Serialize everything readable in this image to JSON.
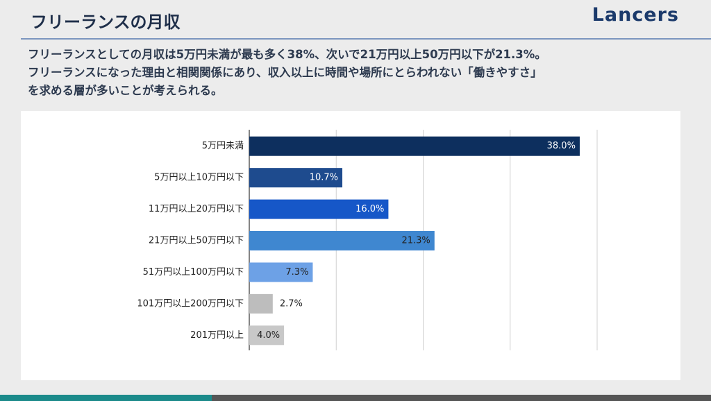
{
  "header": {
    "title": "フリーランスの月収",
    "logo": "Lancers"
  },
  "description": [
    "フリーランスとしての月収は5万円未満が最も多く38%、次いで21万円以上50万円以下が21.3%。",
    "フリーランスになった理由と相関関係にあり、収入以上に時間や場所にとらわれない「働きやすさ」",
    "を求める層が多いことが考えられる。"
  ],
  "chart_data": {
    "type": "hbar",
    "categories": [
      "5万円未満",
      "5万円以上10万円以下",
      "11万円以上20万円以下",
      "21万円以上50万円以下",
      "51万円以上100万円以下",
      "101万円以上200万円以下",
      "201万円以上"
    ],
    "values": [
      38.0,
      10.7,
      16.0,
      21.3,
      7.3,
      2.7,
      4.0
    ],
    "value_labels": [
      "38.0%",
      "10.7%",
      "16.0%",
      "21.3%",
      "7.3%",
      "2.7%",
      "4.0%"
    ],
    "colors": [
      "#0d2f5e",
      "#1e4b8e",
      "#1657c8",
      "#3f87d0",
      "#6da1e6",
      "#bdbdbd",
      "#c8c8c8"
    ],
    "xlim": [
      0,
      40
    ],
    "xticks": [
      0,
      10,
      20,
      30,
      40
    ],
    "grid": true
  }
}
